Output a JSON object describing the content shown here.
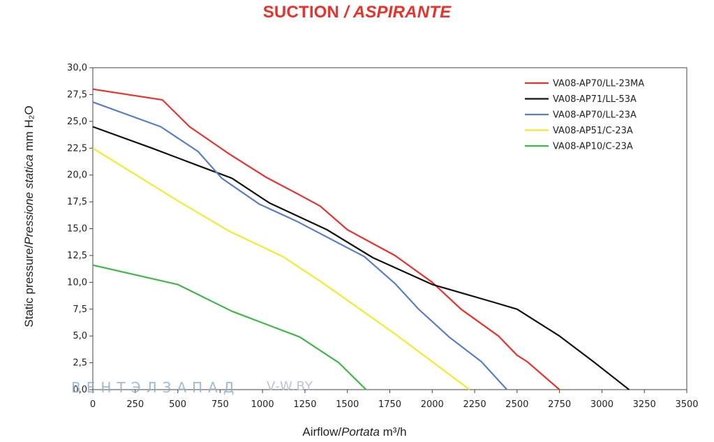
{
  "title": {
    "main": "SUCTION",
    "sep": " / ",
    "italic": "ASPIRANTE"
  },
  "watermark": {
    "brand": "ВЕНТЭЛЗАПАД",
    "site": "V-W.BY"
  },
  "chart_data": {
    "type": "line",
    "xlabel": {
      "plain": "Airflow/",
      "italic": "Portata",
      "unit": " m³/h"
    },
    "ylabel": {
      "plain": "Static pressure/",
      "italic": "Pressione statica",
      "unit": " mm H₂O"
    },
    "xlim": [
      0,
      3500
    ],
    "ylim": [
      0,
      30
    ],
    "xticks": [
      0,
      250,
      500,
      750,
      1000,
      1250,
      1500,
      1750,
      2000,
      2250,
      2500,
      2750,
      3000,
      3250,
      3500
    ],
    "yticks": [
      "0,0",
      "2,5",
      "5,0",
      "7,5",
      "10,0",
      "12,5",
      "15,0",
      "17,5",
      "20,0",
      "22,5",
      "25,0",
      "27,5",
      "30,0"
    ],
    "ytick_values": [
      0,
      2.5,
      5,
      7.5,
      10,
      12.5,
      15,
      17.5,
      20,
      22.5,
      25,
      27.5,
      30
    ],
    "grid": false,
    "legend_position": "top-right",
    "series": [
      {
        "name": "VA08-AP70/LL-23MA",
        "color": "#e8322b",
        "x": [
          0,
          410,
          570,
          800,
          1020,
          1200,
          1340,
          1500,
          1780,
          2000,
          2170,
          2390,
          2500,
          2560,
          2750
        ],
        "y": [
          28.0,
          27.0,
          24.5,
          22.0,
          19.8,
          18.3,
          17.1,
          14.9,
          12.5,
          10.0,
          7.5,
          5.0,
          3.2,
          2.6,
          0.0
        ]
      },
      {
        "name": "VA08-AP71/LL-53A",
        "color": "#111111",
        "x": [
          0,
          350,
          600,
          820,
          1040,
          1380,
          1650,
          2000,
          2350,
          2500,
          2750,
          2950,
          3160
        ],
        "y": [
          24.5,
          22.5,
          21.0,
          19.7,
          17.4,
          14.9,
          12.3,
          9.8,
          8.2,
          7.5,
          5.0,
          2.6,
          0.0
        ]
      },
      {
        "name": "VA08-AP70/LL-23A",
        "color": "#5a7ec6",
        "x": [
          0,
          400,
          620,
          760,
          980,
          1200,
          1600,
          1780,
          1920,
          2100,
          2290,
          2440
        ],
        "y": [
          26.8,
          24.5,
          22.2,
          19.7,
          17.3,
          15.7,
          12.4,
          9.9,
          7.5,
          4.9,
          2.6,
          0.0
        ]
      },
      {
        "name": "VA08-AP51/C-23A",
        "color": "#eded2e",
        "x": [
          0,
          500,
          800,
          1120,
          1350,
          1780,
          2220
        ],
        "y": [
          22.5,
          17.6,
          14.8,
          12.4,
          10.0,
          5.2,
          0.0
        ]
      },
      {
        "name": "VA08-AP10/C-23A",
        "color": "#3fb64a",
        "x": [
          0,
          500,
          820,
          1220,
          1450,
          1610
        ],
        "y": [
          11.6,
          9.8,
          7.3,
          4.9,
          2.5,
          0.0
        ]
      }
    ]
  }
}
